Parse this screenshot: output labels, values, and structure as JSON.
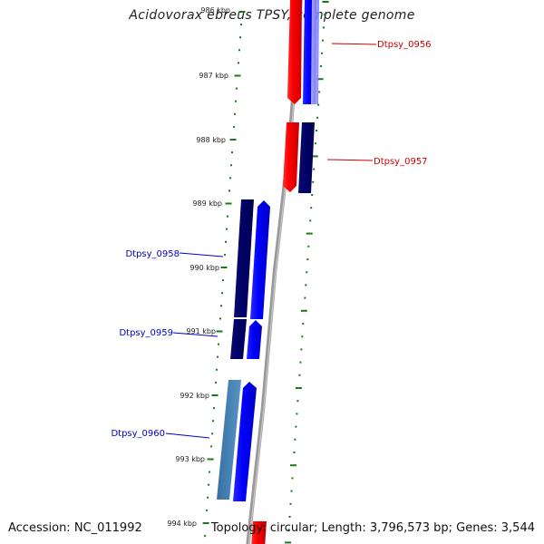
{
  "title": "Acidovorax ebreus TPSY, complete genome",
  "footer": {
    "accession": "Accession: NC_011992",
    "summary": "Topology: circular; Length: 3,796,573 bp; Genes: 3,544"
  },
  "ruler": {
    "labels": [
      "986 kbp",
      "987 kbp",
      "988 kbp",
      "989 kbp",
      "990 kbp",
      "991 kbp",
      "992 kbp",
      "993 kbp",
      "994 kbp"
    ]
  },
  "genes": [
    {
      "id": "Dtpsy_0956",
      "label": "Dtpsy_0956",
      "strand": "forward",
      "label_color": "#cc0000"
    },
    {
      "id": "Dtpsy_0957",
      "label": "Dtpsy_0957",
      "strand": "forward",
      "label_color": "#cc0000"
    },
    {
      "id": "Dtpsy_0958",
      "label": "Dtpsy_0958",
      "strand": "reverse",
      "label_color": "#0000cc"
    },
    {
      "id": "Dtpsy_0959",
      "label": "Dtpsy_0959",
      "strand": "reverse",
      "label_color": "#0000cc"
    },
    {
      "id": "Dtpsy_0960",
      "label": "Dtpsy_0960",
      "strand": "reverse",
      "label_color": "#0000cc"
    }
  ],
  "colors": {
    "forward_gene": "#ff0000",
    "reverse_gene": "#0000ff",
    "dark_block": "#000066",
    "light_block": "#4682b4",
    "backbone": "#888888",
    "ticks": "#1a7a1a"
  }
}
